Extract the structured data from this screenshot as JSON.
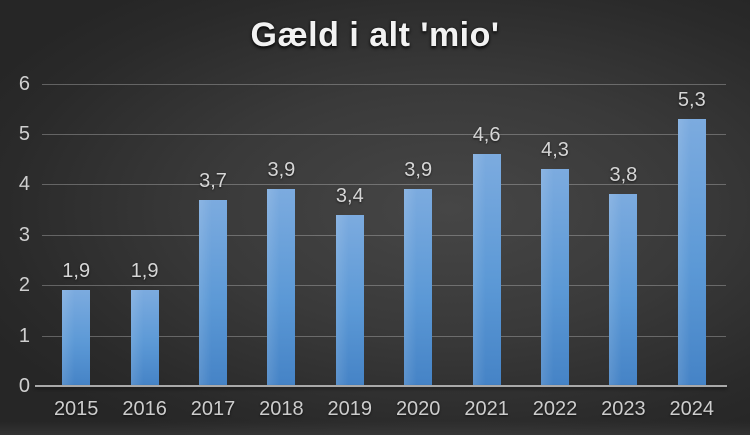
{
  "chart_data": {
    "type": "bar",
    "title": "Gæld i alt 'mio'",
    "categories": [
      "2015",
      "2016",
      "2017",
      "2018",
      "2019",
      "2020",
      "2021",
      "2022",
      "2023",
      "2024"
    ],
    "values": [
      1.9,
      1.9,
      3.7,
      3.9,
      3.4,
      3.9,
      4.6,
      4.3,
      3.8,
      5.3
    ],
    "value_labels": [
      "1,9",
      "1,9",
      "3,7",
      "3,9",
      "3,4",
      "3,9",
      "4,6",
      "4,3",
      "3,8",
      "5,3"
    ],
    "yticks": [
      "0",
      "1",
      "2",
      "3",
      "4",
      "5",
      "6"
    ],
    "ylim": [
      0,
      6
    ],
    "xlabel": "",
    "ylabel": "",
    "grid": true,
    "legend": "none",
    "colors": {
      "bar_top": "#7cabdf",
      "bar_bottom": "#4583c6",
      "background_center": "#464646",
      "background_edge": "#262626",
      "gridline": "#d7d7d7",
      "axis_line": "#a9a9a9",
      "label": "#d2d2d2",
      "title": "#f2f2f2"
    }
  }
}
